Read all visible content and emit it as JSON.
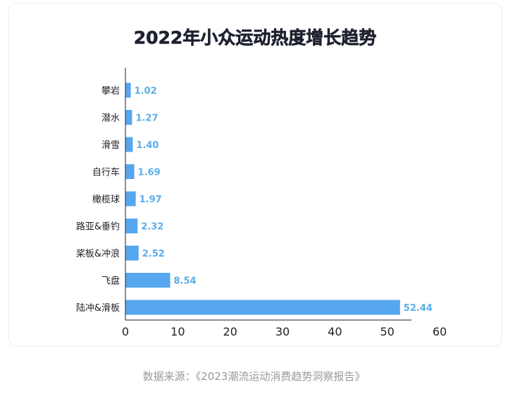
{
  "chart_data": {
    "type": "bar",
    "orientation": "horizontal",
    "title": "2022年小众运动热度增长趋势",
    "categories": [
      "攀岩",
      "潜水",
      "滑雪",
      "自行车",
      "橄榄球",
      "路亚&垂钓",
      "桨板&冲浪",
      "飞盘",
      "陆冲&滑板"
    ],
    "values": [
      1.02,
      1.27,
      1.4,
      1.69,
      1.97,
      2.32,
      2.52,
      8.54,
      52.44
    ],
    "value_labels": [
      "1.02",
      "1.27",
      "1.40",
      "1.69",
      "1.97",
      "2.32",
      "2.52",
      "8.54",
      "52.44"
    ],
    "xlim": [
      0,
      60
    ],
    "xticks": [
      0,
      10,
      20,
      30,
      40,
      50,
      60
    ],
    "grid": false,
    "bar_color": "#56a6f0",
    "label_color": "#5aaeea"
  },
  "source_text": "数据来源：《2023潮流运动消费趋势洞察报告》"
}
